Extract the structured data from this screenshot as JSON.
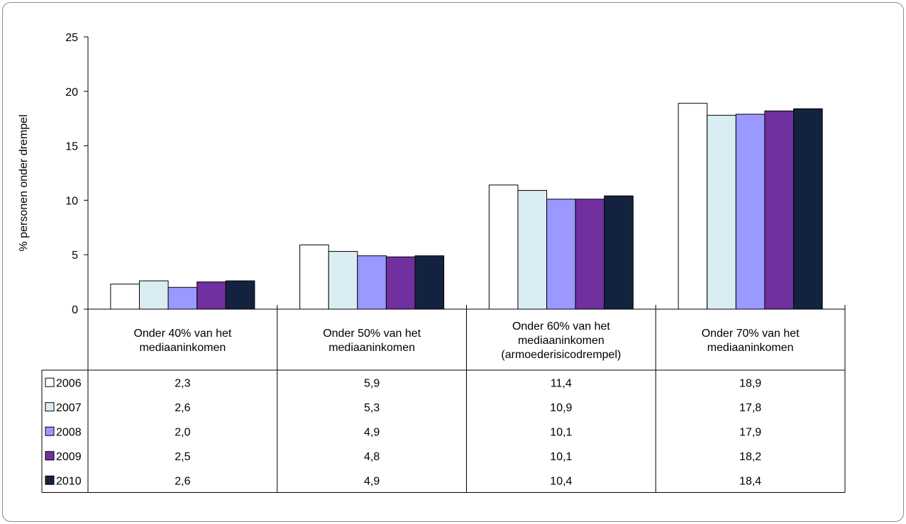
{
  "chart_data": {
    "type": "bar",
    "title": "",
    "xlabel": "",
    "ylabel": "% personen onder drempel",
    "ylim": [
      0,
      25
    ],
    "yticks": [
      0,
      5,
      10,
      15,
      20,
      25
    ],
    "grid": false,
    "legend": "data-table-left",
    "categories": [
      [
        "Onder 40% van het",
        "mediaaninkomen"
      ],
      [
        "Onder 50% van het",
        "mediaaninkomen"
      ],
      [
        "Onder 60% van het",
        "mediaaninkomen",
        "(armoederisicodrempel)"
      ],
      [
        "Onder 70% van het",
        "mediaaninkomen"
      ]
    ],
    "series": [
      {
        "name": "2006",
        "color": "#ffffff",
        "values": [
          2.3,
          5.9,
          11.4,
          18.9
        ],
        "labels": [
          "2,3",
          "5,9",
          "11,4",
          "18,9"
        ]
      },
      {
        "name": "2007",
        "color": "#daedf3",
        "values": [
          2.6,
          5.3,
          10.9,
          17.8
        ],
        "labels": [
          "2,6",
          "5,3",
          "10,9",
          "17,8"
        ]
      },
      {
        "name": "2008",
        "color": "#9999ff",
        "values": [
          2.0,
          4.9,
          10.1,
          17.9
        ],
        "labels": [
          "2,0",
          "4,9",
          "10,1",
          "17,9"
        ]
      },
      {
        "name": "2009",
        "color": "#7030a0",
        "values": [
          2.5,
          4.8,
          10.1,
          18.2
        ],
        "labels": [
          "2,5",
          "4,8",
          "10,1",
          "18,2"
        ]
      },
      {
        "name": "2010",
        "color": "#13233f",
        "values": [
          2.6,
          4.9,
          10.4,
          18.4
        ],
        "labels": [
          "2,6",
          "4,9",
          "10,4",
          "18,4"
        ]
      }
    ]
  }
}
